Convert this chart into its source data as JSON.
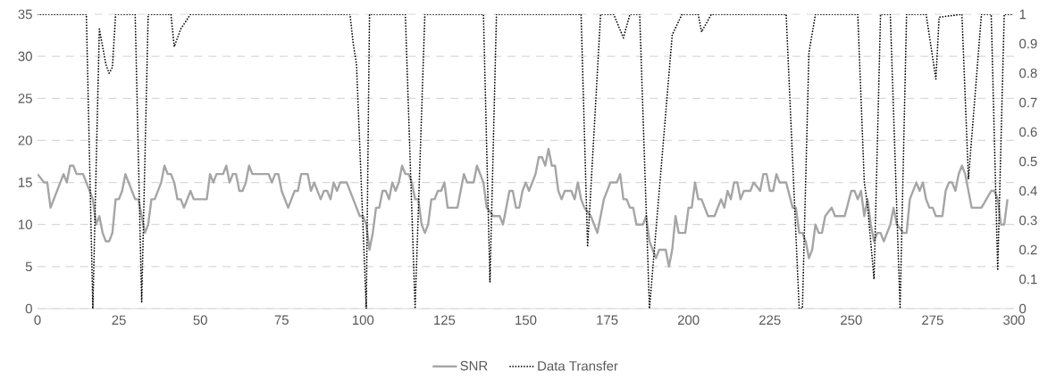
{
  "chart_data": {
    "type": "line",
    "series": [
      {
        "name": "SNR",
        "color": "#a5a5a5",
        "line_style": "solid",
        "x": [
          0,
          2,
          3,
          4,
          8,
          9,
          10,
          11,
          12,
          14,
          15,
          17,
          18,
          19,
          20,
          21,
          22,
          23,
          24,
          25,
          26,
          27,
          28,
          30,
          31,
          33,
          34,
          35,
          36,
          38,
          39,
          40,
          41,
          42,
          43,
          44,
          45,
          47,
          48,
          52,
          53,
          54,
          55,
          57,
          58,
          59,
          60,
          61,
          62,
          63,
          64,
          65,
          66,
          71,
          72,
          73,
          74,
          75,
          77,
          79,
          80,
          81,
          83,
          84,
          85,
          87,
          88,
          89,
          90,
          91,
          92,
          93,
          95,
          97,
          99,
          100,
          101,
          102,
          103,
          104,
          105,
          106,
          107,
          108,
          109,
          110,
          111,
          112,
          113,
          114,
          115,
          116,
          117,
          118,
          119,
          120,
          121,
          122,
          123,
          124,
          125,
          126,
          129,
          130,
          131,
          132,
          134,
          135,
          137,
          138,
          140,
          142,
          143,
          145,
          146,
          147,
          148,
          149,
          150,
          151,
          153,
          154,
          155,
          156,
          157,
          158,
          159,
          160,
          161,
          162,
          164,
          165,
          166,
          167,
          168,
          170,
          172,
          174,
          176,
          178,
          179,
          180,
          181,
          182,
          183,
          184,
          186,
          187,
          188,
          190,
          191,
          193,
          194,
          195,
          196,
          197,
          199,
          200,
          201,
          202,
          203,
          204,
          206,
          208,
          210,
          211,
          212,
          213,
          214,
          215,
          216,
          217,
          219,
          220,
          222,
          223,
          224,
          225,
          226,
          227,
          228,
          230,
          232,
          233,
          234,
          235,
          236,
          237,
          238,
          239,
          240,
          241,
          242,
          244,
          245,
          248,
          250,
          251,
          252,
          253,
          254,
          255,
          256,
          257,
          258,
          259,
          260,
          262,
          263,
          264,
          266,
          267,
          268,
          270,
          271,
          272,
          273,
          274,
          275,
          276,
          278,
          279,
          280,
          281,
          282,
          283,
          284,
          285,
          287,
          290,
          293,
          294,
          295,
          296,
          297,
          298
        ],
        "values": [
          16,
          15,
          15,
          12,
          16,
          15,
          17,
          17,
          16,
          16,
          15,
          13,
          10,
          11,
          9,
          8,
          8,
          9,
          13,
          13,
          14,
          16,
          15,
          13,
          13,
          9,
          10,
          13,
          13,
          15,
          17,
          16,
          16,
          15,
          13,
          13,
          12,
          14,
          13,
          13,
          16,
          15,
          16,
          16,
          17,
          15,
          16,
          16,
          14,
          14,
          15,
          17,
          16,
          16,
          15,
          16,
          16,
          14,
          12,
          14,
          14,
          16,
          16,
          14,
          15,
          13,
          14,
          14,
          13,
          15,
          14,
          15,
          15,
          13,
          11,
          11,
          10,
          7,
          9,
          12,
          12,
          14,
          14,
          13,
          15,
          14,
          15,
          17,
          16,
          16,
          15,
          13,
          13,
          10,
          9,
          10,
          13,
          13,
          14,
          14,
          15,
          12,
          12,
          14,
          16,
          15,
          15,
          17,
          15,
          12,
          11,
          11,
          10,
          14,
          14,
          12,
          12,
          14,
          15,
          14,
          16,
          18,
          18,
          17,
          19,
          17,
          17,
          14,
          13,
          14,
          14,
          13,
          15,
          13,
          12,
          11,
          9,
          13,
          15,
          15,
          16,
          13,
          13,
          12,
          12,
          10,
          10,
          11,
          8,
          6,
          7,
          7,
          5,
          7,
          11,
          9,
          9,
          12,
          12,
          15,
          13,
          13,
          11,
          11,
          13,
          12,
          14,
          13,
          15,
          15,
          13,
          14,
          14,
          15,
          14,
          16,
          16,
          14,
          14,
          16,
          15,
          15,
          12,
          12,
          9,
          9,
          8,
          6,
          7,
          10,
          9,
          9,
          11,
          12,
          11,
          11,
          14,
          14,
          13,
          14,
          11,
          13,
          10,
          8,
          9,
          9,
          8,
          10,
          12,
          10,
          9,
          9,
          13,
          15,
          14,
          15,
          13,
          12,
          12,
          11,
          11,
          14,
          15,
          15,
          14,
          16,
          17,
          16,
          12,
          12,
          14,
          14,
          13,
          10,
          10,
          13
        ]
      },
      {
        "name": "Data Transfer",
        "color": "#000000",
        "line_style": "dotted",
        "axis": "y2",
        "x": [
          0,
          15,
          17,
          19,
          21,
          22,
          23,
          24,
          30,
          32,
          34,
          41,
          42,
          44,
          47,
          96,
          97,
          98,
          101,
          102,
          113,
          116,
          119,
          137,
          139,
          141,
          167,
          169,
          173,
          177,
          180,
          182,
          185,
          188,
          195,
          198,
          203,
          204,
          207,
          230,
          234,
          235,
          237,
          239,
          252,
          254,
          255,
          257,
          259,
          262,
          265,
          267,
          273,
          276,
          277,
          284,
          286,
          290,
          293,
          295,
          297,
          300
        ],
        "values": [
          1,
          1,
          0,
          0.95,
          0.83,
          0.8,
          0.82,
          1,
          1,
          0.02,
          1,
          1,
          0.89,
          0.95,
          1,
          1,
          0.9,
          0.83,
          0,
          1,
          1,
          0,
          1,
          1,
          0.09,
          1,
          1,
          0.21,
          1,
          1,
          0.92,
          1,
          1,
          0,
          0.93,
          1,
          1,
          0.94,
          1,
          1,
          0,
          0,
          0.87,
          1,
          1,
          0.43,
          0.35,
          0.1,
          1,
          1,
          0,
          1,
          1,
          0.78,
          0.99,
          1,
          0.44,
          1,
          1,
          0.13,
          1,
          1
        ]
      }
    ],
    "xlim": [
      0,
      300
    ],
    "xticks": [
      0,
      25,
      50,
      75,
      100,
      125,
      150,
      175,
      200,
      225,
      250,
      275,
      300
    ],
    "ylim": [
      0,
      35
    ],
    "yticks": [
      0,
      5,
      10,
      15,
      20,
      25,
      30,
      35
    ],
    "y2lim": [
      0,
      1
    ],
    "y2ticks": [
      0,
      0.1,
      0.2,
      0.3,
      0.4,
      0.5,
      0.6,
      0.7,
      0.8,
      0.9,
      1
    ],
    "grid": "y",
    "legend": "bottom",
    "marker": "none"
  }
}
